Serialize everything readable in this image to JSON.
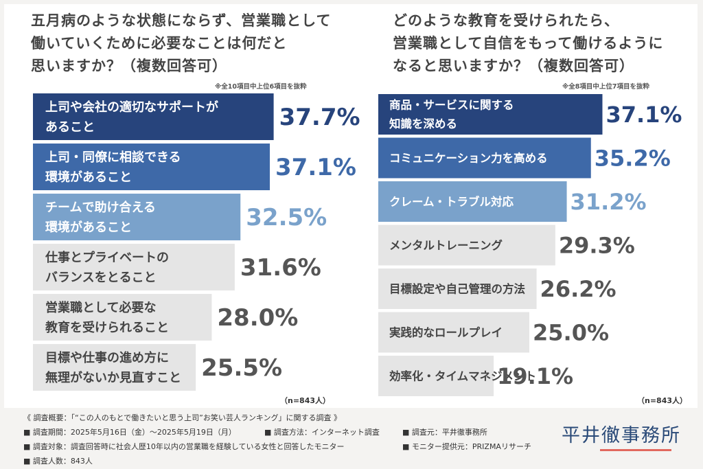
{
  "chart_data": [
    {
      "type": "bar",
      "orientation": "horizontal",
      "title": "五月病のような状態にならず、営業職として\n働いていくために必要なことは何だと\n思いますか？（複数回答可）",
      "note": "※全10項目中上位6項目を抜粋",
      "sample": "（n=843人）",
      "categories": [
        "上司や会社の適切なサポートが\nあること",
        "上司・同僚に相談できる\n環境があること",
        "チームで助け合える\n環境があること",
        "仕事とプライベートの\nバランスをとること",
        "営業職として必要な\n教育を受けられること",
        "目標や仕事の進め方に\n無理がないか見直すこと"
      ],
      "values": [
        37.7,
        37.1,
        32.5,
        31.6,
        28.0,
        25.5
      ],
      "labels": [
        "37.7%",
        "37.1%",
        "32.5%",
        "31.6%",
        "28.0%",
        "25.5%"
      ],
      "unit": "%",
      "bar_colors": [
        "#27447c",
        "#3e69a8",
        "#7aa2cb",
        "#e5e5e5",
        "#e5e5e5",
        "#e5e5e5"
      ],
      "label_colors": [
        "#27447c",
        "#3e69a8",
        "#7aa2cb",
        "#555555",
        "#555555",
        "#555555"
      ],
      "text_colors": [
        "#ffffff",
        "#ffffff",
        "#ffffff",
        "#444444",
        "#444444",
        "#444444"
      ]
    },
    {
      "type": "bar",
      "orientation": "horizontal",
      "title": "どのような教育を受けられたら、\n営業職として自信をもって働けるように\nなると思いますか？（複数回答可）",
      "note": "※全8項目中上位7項目を抜粋",
      "sample": "（n=843人）",
      "categories": [
        "商品・サービスに関する\n知識を深める",
        "コミュニケーション力を高める",
        "クレーム・トラブル対応",
        "メンタルトレーニング",
        "目標設定や自己管理の方法",
        "実践的なロールプレイ",
        "効率化・タイムマネジメント"
      ],
      "values": [
        37.1,
        35.2,
        31.2,
        29.3,
        26.2,
        25.0,
        19.1
      ],
      "labels": [
        "37.1%",
        "35.2%",
        "31.2%",
        "29.3%",
        "26.2%",
        "25.0%",
        "19.1%"
      ],
      "unit": "%",
      "bar_colors": [
        "#27447c",
        "#3e69a8",
        "#7aa2cb",
        "#e5e5e5",
        "#e5e5e5",
        "#e5e5e5",
        "#e5e5e5"
      ],
      "label_colors": [
        "#27447c",
        "#3e69a8",
        "#7aa2cb",
        "#555555",
        "#555555",
        "#555555",
        "#555555"
      ],
      "text_colors": [
        "#ffffff",
        "#ffffff",
        "#ffffff",
        "#444444",
        "#444444",
        "#444444",
        "#444444"
      ]
    }
  ],
  "footer": {
    "summary": "《 調査概要：「“この人のもとで働きたいと思う上司”お笑い芸人ランキング」に関する調査 》",
    "period": "■ 調査期間：2025年5月16日（金）〜2025年5月19日（月）",
    "method": "■ 調査方法：インターネット調査",
    "source": "■ 調査元：平井徹事務所",
    "target": "■ 調査対象：調査回答時に社会人歴10年以内の営業職を経験している女性と回答したモニター",
    "provider": "■ モニター提供元：PRIZMAリサーチ",
    "count": "■ 調査人数：843人",
    "logo": "平井徹事務所"
  }
}
